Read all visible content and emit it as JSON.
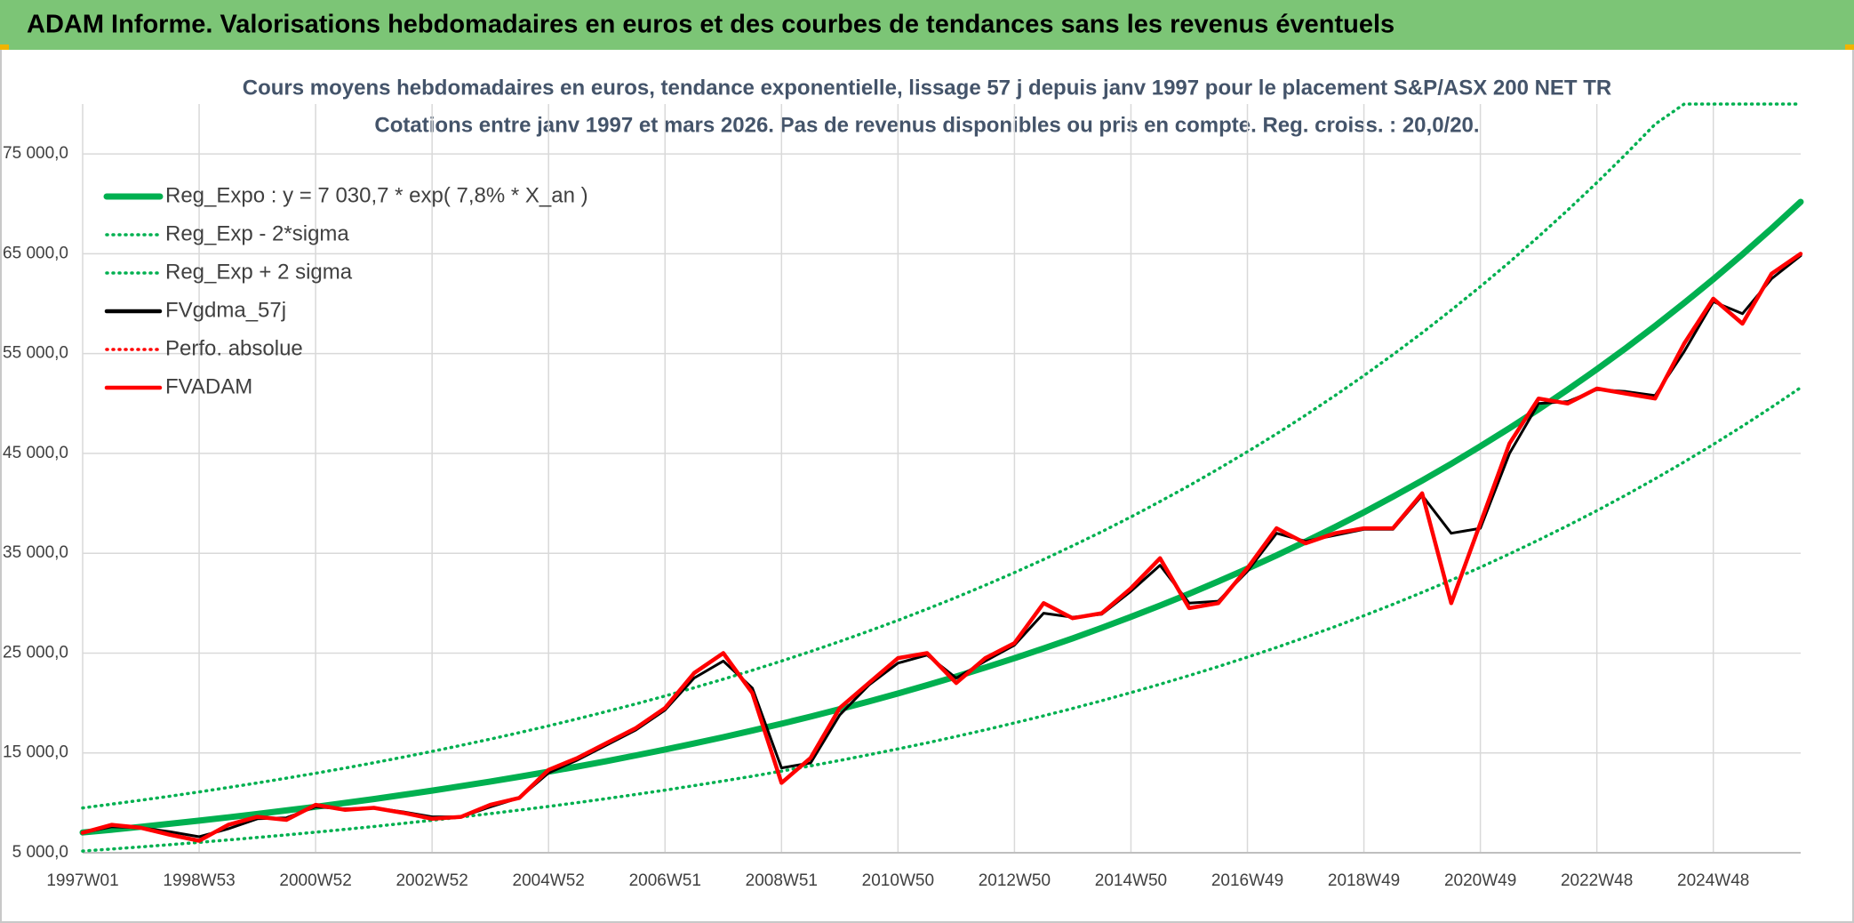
{
  "chart_data": {
    "type": "line",
    "title": "ADAM Informe. Valorisations hebdomadaires en euros et des courbes de tendances sans les revenus éventuels",
    "subtitle": [
      "Cours moyens hebdomadaires en euros, tendance exponentielle, lissage 57 j depuis janv 1997 pour le placement S&P/ASX 200 NET TR",
      "Cotations entre janv 1997 et mars 2026. Pas de revenus disponibles ou pris en compte. Reg. croiss. : 20,0/20."
    ],
    "categories": [
      "1997W01",
      null,
      null,
      null,
      "1998W53",
      null,
      null,
      null,
      "2000W52",
      null,
      null,
      null,
      "2002W52",
      null,
      null,
      null,
      "2004W52",
      null,
      null,
      null,
      "2006W51",
      null,
      null,
      null,
      "2008W51",
      null,
      null,
      null,
      "2010W50",
      null,
      null,
      null,
      "2012W50",
      null,
      null,
      null,
      "2014W50",
      null,
      null,
      null,
      "2016W49",
      null,
      null,
      null,
      "2018W49",
      null,
      null,
      null,
      "2020W49",
      null,
      null,
      null,
      "2022W48",
      null,
      null,
      null,
      "2024W48",
      null,
      null,
      null
    ],
    "ylim": [
      5000,
      80000
    ],
    "yticks": [
      {
        "value": 5000,
        "label": "5 000,0"
      },
      {
        "value": 15000,
        "label": "15 000,0"
      },
      {
        "value": 25000,
        "label": "25 000,0"
      },
      {
        "value": 35000,
        "label": "35 000,0"
      },
      {
        "value": 45000,
        "label": "45 000,0"
      },
      {
        "value": 55000,
        "label": "55 000,0"
      },
      {
        "value": 65000,
        "label": "65 000,0"
      },
      {
        "value": 75000,
        "label": "75 000,0"
      }
    ],
    "grid": true,
    "legend": "top-left",
    "series": [
      {
        "name": "Reg_Expo : y = 7 030,7 * exp( 7,8% *  X_an )",
        "color": "#00b050",
        "style": "solid",
        "values": [
          7031,
          7310,
          7601,
          7903,
          8218,
          8545,
          8884,
          9238,
          9605,
          9987,
          10384,
          10797,
          11227,
          11673,
          12138,
          12620,
          13122,
          13644,
          14187,
          14751,
          15338,
          15948,
          16582,
          17241,
          17927,
          18640,
          19382,
          20152,
          20954,
          21787,
          22654,
          23555,
          24492,
          25466,
          26478,
          27532,
          28627,
          29765,
          30949,
          32180,
          33460,
          34790,
          36174,
          37613,
          39109,
          40664,
          42282,
          43963,
          45712,
          47530,
          49420,
          51386,
          53429,
          55554,
          57764,
          60061,
          62450,
          64934,
          67517,
          70202
        ]
      },
      {
        "name": "Reg_Exp - 2*sigma",
        "color": "#00b050",
        "style": "dotted",
        "values": [
          5168,
          5373,
          5587,
          5809,
          6040,
          6281,
          6530,
          6790,
          7060,
          7340,
          7632,
          7936,
          8252,
          8580,
          8921,
          9276,
          9645,
          10028,
          10427,
          10842,
          11273,
          11722,
          12188,
          12672,
          13176,
          13700,
          14246,
          14812,
          15401,
          16013,
          16651,
          17313,
          18002,
          18718,
          19461,
          20236,
          21041,
          21877,
          22748,
          23652,
          24593,
          25571,
          26588,
          27646,
          28745,
          29888,
          31077,
          32313,
          33597,
          34935,
          36324,
          37769,
          39270,
          40832,
          42457,
          44145,
          45901,
          47726,
          49625,
          51598
        ]
      },
      {
        "name": "Reg_Exp + 2 sigma",
        "color": "#00b050",
        "style": "dotted",
        "values": [
          9492,
          9869,
          10261,
          10669,
          11094,
          11536,
          11993,
          12471,
          12967,
          13482,
          14018,
          14576,
          15156,
          15759,
          16386,
          17037,
          17715,
          18419,
          19152,
          19914,
          20706,
          21530,
          22386,
          23275,
          24201,
          25164,
          26166,
          27205,
          28288,
          29412,
          30583,
          31799,
          33064,
          34379,
          35745,
          37168,
          38646,
          40183,
          41781,
          43443,
          45171,
          46967,
          48835,
          50778,
          52797,
          54896,
          57081,
          59350,
          61711,
          64166,
          66717,
          69371,
          72129,
          74998,
          77981,
          80000,
          80000,
          80000,
          80000,
          80000
        ]
      },
      {
        "name": "FVgdma_57j",
        "color": "#000000",
        "style": "solid",
        "values": [
          7000,
          7600,
          7500,
          7100,
          6600,
          7400,
          8400,
          8500,
          9600,
          9400,
          9500,
          9100,
          8600,
          8600,
          9600,
          10500,
          13000,
          14300,
          15800,
          17300,
          19300,
          22500,
          24200,
          21500,
          13500,
          14000,
          18800,
          21800,
          24000,
          24800,
          22500,
          24200,
          25800,
          29000,
          28600,
          28900,
          31200,
          33800,
          30000,
          30200,
          33200,
          37000,
          36200,
          36800,
          37400,
          37400,
          40800,
          37000,
          37500,
          45000,
          50000,
          50200,
          51400,
          51200,
          50800,
          55200,
          60200,
          59000,
          62500,
          64800
        ]
      },
      {
        "name": "Perfo. absolue",
        "color": "#ff0000",
        "style": "dotted",
        "values": [
          null,
          null,
          null,
          null,
          null,
          null,
          null,
          null,
          null,
          null,
          null,
          null,
          null,
          null,
          null,
          null,
          null,
          null,
          null,
          null,
          null,
          null,
          null,
          null,
          null,
          null,
          null,
          null,
          null,
          null,
          null,
          null,
          null,
          null,
          null,
          null,
          null,
          null,
          null,
          null,
          null,
          null,
          null,
          null,
          null,
          null,
          null,
          null,
          null,
          null,
          null,
          null,
          null,
          null,
          null,
          null,
          null,
          null,
          null,
          null
        ]
      },
      {
        "name": "FVADAM",
        "color": "#ff0000",
        "style": "solid",
        "values": [
          7000,
          7800,
          7500,
          6800,
          6200,
          7800,
          8600,
          8300,
          9800,
          9300,
          9500,
          9000,
          8400,
          8600,
          9800,
          10500,
          13300,
          14500,
          16000,
          17500,
          19500,
          23000,
          25000,
          21000,
          12000,
          14500,
          19500,
          22000,
          24500,
          25000,
          22000,
          24500,
          26000,
          30000,
          28500,
          29000,
          31500,
          34500,
          29500,
          30000,
          33500,
          37500,
          36000,
          37000,
          37500,
          37500,
          41000,
          30000,
          38000,
          46000,
          50500,
          50000,
          51500,
          51000,
          50500,
          56000,
          60500,
          58000,
          63000,
          65000
        ]
      }
    ]
  }
}
